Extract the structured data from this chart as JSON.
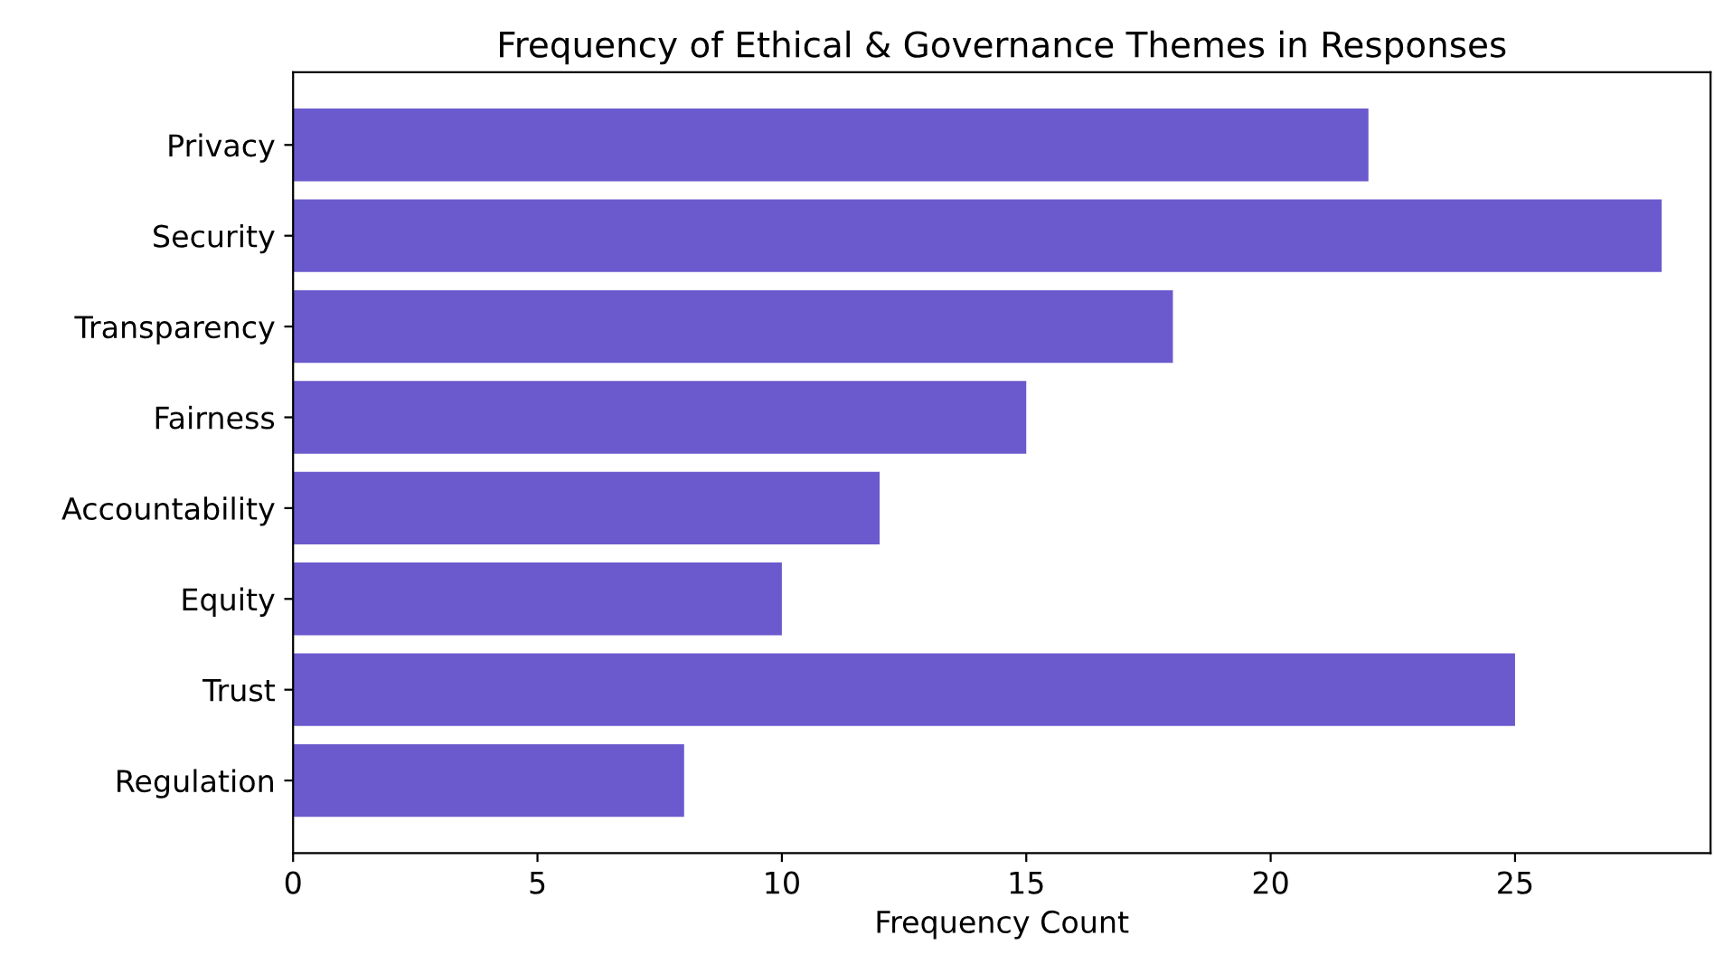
{
  "chart_data": {
    "type": "bar",
    "orientation": "horizontal",
    "title": "Frequency of Ethical & Governance Themes in Responses",
    "xlabel": "Frequency Count",
    "categories": [
      "Privacy",
      "Security",
      "Transparency",
      "Fairness",
      "Accountability",
      "Equity",
      "Trust",
      "Regulation"
    ],
    "values": [
      22,
      28,
      18,
      15,
      12,
      10,
      25,
      8
    ],
    "color": "#6a5acd",
    "xlim": [
      0,
      29
    ],
    "xticks": [
      0,
      5,
      10,
      15,
      20,
      25
    ],
    "grid": false
  }
}
